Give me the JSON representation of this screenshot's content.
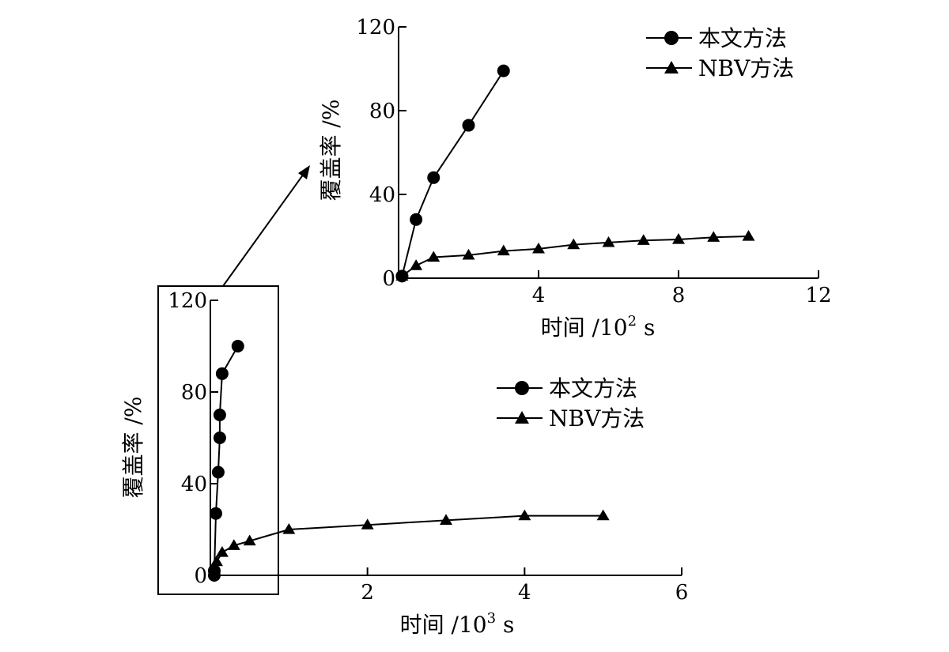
{
  "chart_data": [
    {
      "name": "main",
      "type": "line",
      "xlabel": "时间 /10",
      "xlabel_exp": "3",
      "xlabel_unit": " s",
      "ylabel": "覆盖率 /%",
      "xlim": [
        0,
        6
      ],
      "ylim": [
        0,
        120
      ],
      "xticks": [
        "2",
        "4",
        "6"
      ],
      "yticks": [
        "0",
        "40",
        "80",
        "120"
      ],
      "legend": "center-right",
      "series": [
        {
          "name": "本文方法",
          "marker": "circle",
          "x": [
            0.05,
            0.05,
            0.07,
            0.1,
            0.12,
            0.12,
            0.15,
            0.35
          ],
          "y": [
            0,
            2,
            27,
            45,
            60,
            70,
            88,
            100
          ]
        },
        {
          "name": "NBV方法",
          "marker": "triangle",
          "x": [
            0.05,
            0.08,
            0.15,
            0.3,
            0.5,
            1,
            2,
            3,
            4,
            5
          ],
          "y": [
            2,
            6,
            10,
            13,
            15,
            20,
            22,
            24,
            26,
            26
          ]
        }
      ]
    },
    {
      "name": "inset",
      "type": "line",
      "xlabel": "时间 /10",
      "xlabel_exp": "2",
      "xlabel_unit": " s",
      "ylabel": "覆盖率 /%",
      "xlim": [
        0,
        12
      ],
      "ylim": [
        0,
        120
      ],
      "xticks": [
        "4",
        "8",
        "12"
      ],
      "yticks": [
        "0",
        "40",
        "80",
        "120"
      ],
      "legend": "top-right",
      "series": [
        {
          "name": "本文方法",
          "marker": "circle",
          "x": [
            0.1,
            0.5,
            1,
            2,
            3
          ],
          "y": [
            1,
            28,
            48,
            73,
            99
          ]
        },
        {
          "name": "NBV方法",
          "marker": "triangle",
          "x": [
            0.1,
            0.5,
            1,
            2,
            3,
            4,
            5,
            6,
            7,
            8,
            9,
            10
          ],
          "y": [
            1,
            6,
            10,
            11,
            13,
            14,
            16,
            17,
            18,
            18.5,
            19.5,
            20
          ]
        }
      ]
    }
  ]
}
